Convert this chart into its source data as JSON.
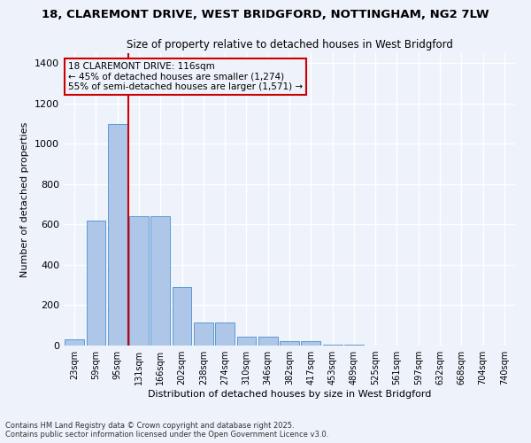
{
  "title_line1": "18, CLAREMONT DRIVE, WEST BRIDGFORD, NOTTINGHAM, NG2 7LW",
  "title_line2": "Size of property relative to detached houses in West Bridgford",
  "xlabel": "Distribution of detached houses by size in West Bridgford",
  "ylabel": "Number of detached properties",
  "categories": [
    "23sqm",
    "59sqm",
    "95sqm",
    "131sqm",
    "166sqm",
    "202sqm",
    "238sqm",
    "274sqm",
    "310sqm",
    "346sqm",
    "382sqm",
    "417sqm",
    "453sqm",
    "489sqm",
    "525sqm",
    "561sqm",
    "597sqm",
    "632sqm",
    "668sqm",
    "704sqm",
    "740sqm"
  ],
  "values": [
    30,
    620,
    1100,
    640,
    640,
    290,
    115,
    115,
    45,
    45,
    20,
    20,
    5,
    5,
    0,
    0,
    0,
    0,
    0,
    0,
    0
  ],
  "bar_color": "#aec6e8",
  "bar_edge_color": "#5b9bd5",
  "vline_color": "#cc0000",
  "vline_x_index": 2.5,
  "annotation_text": "18 CLAREMONT DRIVE: 116sqm\n← 45% of detached houses are smaller (1,274)\n55% of semi-detached houses are larger (1,571) →",
  "annotation_box_color": "#cc0000",
  "ylim": [
    0,
    1450
  ],
  "yticks": [
    0,
    200,
    400,
    600,
    800,
    1000,
    1200,
    1400
  ],
  "background_color": "#eef2fb",
  "grid_color": "#ffffff",
  "footer_line1": "Contains HM Land Registry data © Crown copyright and database right 2025.",
  "footer_line2": "Contains public sector information licensed under the Open Government Licence v3.0."
}
